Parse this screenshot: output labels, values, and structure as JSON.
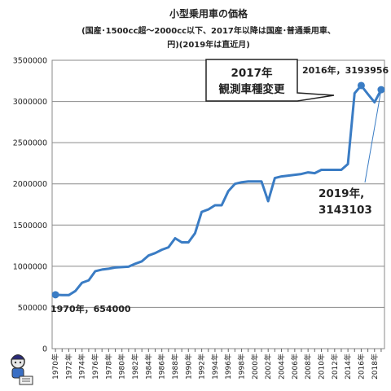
{
  "chart_data": {
    "type": "line",
    "title_lines": [
      "小型乗用車の価格",
      "(国産･1500cc超～2000cc以下、2017年以降は国産･普通乗用車、",
      "円)(2019年は直近月)"
    ],
    "ylim": [
      0,
      3500000
    ],
    "yticks": [
      "0",
      "500000",
      "1000000",
      "1500000",
      "2000000",
      "2500000",
      "3000000",
      "3500000"
    ],
    "ytick_values": [
      0,
      500000,
      1000000,
      1500000,
      2000000,
      2500000,
      3000000,
      3500000
    ],
    "grid": true,
    "xtick_labels": [
      "1970年",
      "1972年",
      "1974年",
      "1976年",
      "1978年",
      "1980年",
      "1982年",
      "1984年",
      "1986年",
      "1988年",
      "1990年",
      "1992年",
      "1994年",
      "1996年",
      "1998年",
      "2000年",
      "2002年",
      "2004年",
      "2006年",
      "2008年",
      "2010年",
      "2012年",
      "2014年",
      "2016年",
      "2018年"
    ],
    "series": [
      {
        "color": "#3a7cc4",
        "x": [
          1970,
          1971,
          1972,
          1973,
          1974,
          1975,
          1976,
          1977,
          1978,
          1979,
          1980,
          1981,
          1982,
          1983,
          1984,
          1985,
          1986,
          1987,
          1988,
          1989,
          1990,
          1991,
          1992,
          1993,
          1994,
          1995,
          1996,
          1997,
          1998,
          1999,
          2000,
          2001,
          2002,
          2003,
          2004,
          2005,
          2006,
          2007,
          2008,
          2009,
          2010,
          2011,
          2012,
          2013,
          2014,
          2015,
          2016,
          2017,
          2018,
          2019
        ],
        "values": [
          654000,
          650000,
          650000,
          700000,
          800000,
          830000,
          940000,
          960000,
          970000,
          985000,
          990000,
          995000,
          1030000,
          1060000,
          1130000,
          1160000,
          1200000,
          1230000,
          1340000,
          1290000,
          1290000,
          1400000,
          1660000,
          1690000,
          1740000,
          1740000,
          1910000,
          2000000,
          2020000,
          2030000,
          2030000,
          2030000,
          1790000,
          2070000,
          2090000,
          2100000,
          2110000,
          2120000,
          2140000,
          2130000,
          2170000,
          2170000,
          2170000,
          2170000,
          2240000,
          3100000,
          3193956,
          3090000,
          2990000,
          3143103
        ]
      }
    ],
    "labels": {
      "start": "1970年，654000",
      "peak": "2016年，3193956",
      "latest_line1": "2019年,",
      "latest_line2": "3143103",
      "callout_line1": "2017年",
      "callout_line2": "観測車種変更"
    }
  }
}
